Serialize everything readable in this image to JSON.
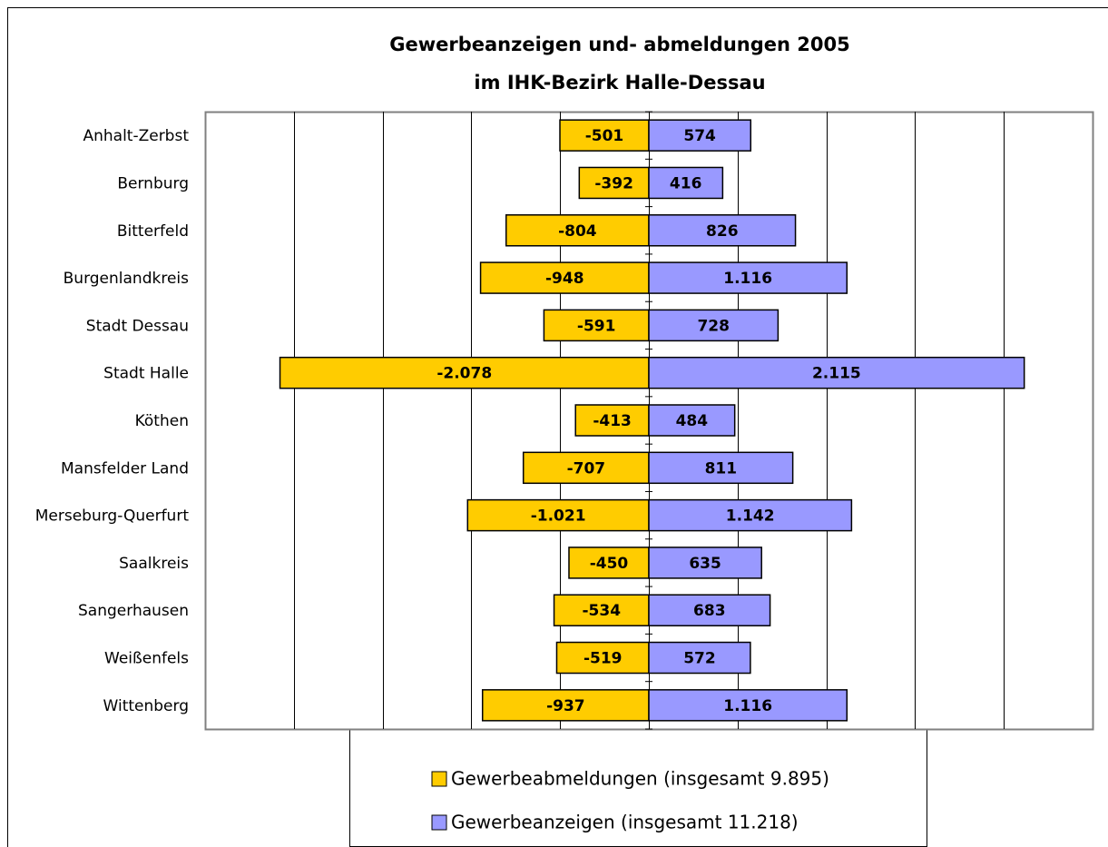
{
  "chart_data": {
    "type": "diverging_bar",
    "title": [
      "Gewerbeanzeigen und- abmeldungen 2005",
      "im IHK-Bezirk Halle-Dessau"
    ],
    "categories": [
      "Anhalt-Zerbst",
      "Bernburg",
      "Bitterfeld",
      "Burgenlandkreis",
      "Stadt Dessau",
      "Stadt Halle",
      "Köthen",
      "Mansfelder Land",
      "Merseburg-Querfurt",
      "Saalkreis",
      "Sangerhausen",
      "Weißenfels",
      "Wittenberg"
    ],
    "series": [
      {
        "name": "Gewerbeabmeldungen (insgesamt 9.895)",
        "color": "#ffcc00",
        "values": [
          -501,
          -392,
          -804,
          -948,
          -591,
          -2078,
          -413,
          -707,
          -1021,
          -450,
          -534,
          -519,
          -937
        ],
        "value_labels": [
          "-501",
          "-392",
          "-804",
          "-948",
          "-591",
          "-2.078",
          "-413",
          "-707",
          "-1.021",
          "-450",
          "-534",
          "-519",
          "-937"
        ]
      },
      {
        "name": "Gewerbeanzeigen (insgesamt 11.218)",
        "color": "#9999ff",
        "values": [
          574,
          416,
          826,
          1116,
          728,
          2115,
          484,
          811,
          1142,
          635,
          683,
          572,
          1116
        ],
        "value_labels": [
          "574",
          "416",
          "826",
          "1.116",
          "728",
          "2.115",
          "484",
          "811",
          "1.142",
          "635",
          "683",
          "572",
          "1.116"
        ]
      }
    ],
    "xlim": [
      -2500,
      2500
    ],
    "xticks": [
      -2000,
      -1500,
      -1000,
      -500,
      0,
      500,
      1000,
      1500,
      2000
    ],
    "grid": true
  }
}
